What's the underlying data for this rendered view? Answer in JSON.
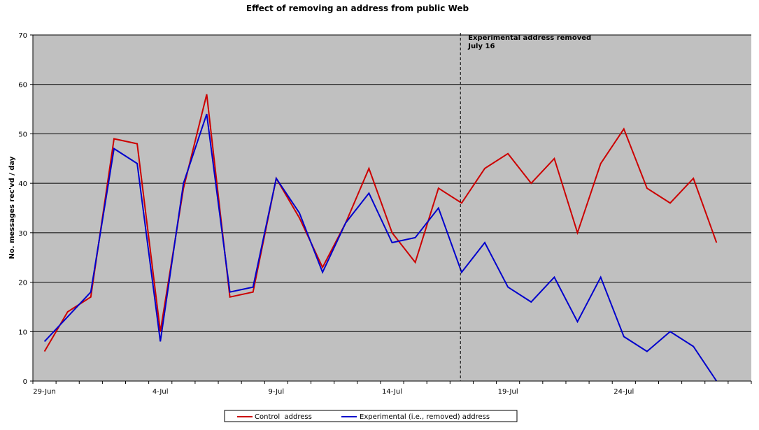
{
  "chart_data": {
    "type": "line",
    "title": "Effect of removing an address from public Web",
    "xlabel": "",
    "ylabel": "No. messages rec'vd / day",
    "ylim": [
      0,
      70
    ],
    "yticks": [
      0,
      10,
      20,
      30,
      40,
      50,
      60,
      70
    ],
    "x": [
      "29-Jun",
      "30-Jun",
      "1-Jul",
      "2-Jul",
      "3-Jul",
      "4-Jul",
      "5-Jul",
      "6-Jul",
      "7-Jul",
      "8-Jul",
      "9-Jul",
      "10-Jul",
      "11-Jul",
      "12-Jul",
      "13-Jul",
      "14-Jul",
      "15-Jul",
      "16-Jul",
      "17-Jul",
      "18-Jul",
      "19-Jul",
      "20-Jul",
      "21-Jul",
      "22-Jul",
      "23-Jul",
      "24-Jul",
      "25-Jul",
      "26-Jul",
      "27-Jul",
      "28-Jul",
      "29-Jul"
    ],
    "xtick_labels": [
      "29-Jun",
      "4-Jul",
      "9-Jul",
      "14-Jul",
      "19-Jul",
      "24-Jul"
    ],
    "grid": "horizontal",
    "background": "#c0c0c0",
    "legend_position": "bottom",
    "series": [
      {
        "name": "Control  address",
        "color": "#cc0000",
        "values": [
          6,
          14,
          17,
          49,
          48,
          10,
          39,
          58,
          17,
          18,
          41,
          33,
          23,
          32,
          43,
          30,
          24,
          39,
          36,
          43,
          46,
          40,
          45,
          30,
          44,
          51,
          39,
          36,
          41,
          28,
          null
        ]
      },
      {
        "name": "Experimental (i.e., removed) address",
        "color": "#0000cc",
        "values": [
          8,
          13,
          18,
          47,
          44,
          8,
          40,
          54,
          18,
          19,
          41,
          34,
          22,
          32,
          38,
          28,
          29,
          35,
          22,
          28,
          19,
          16,
          21,
          12,
          21,
          9,
          6,
          10,
          7,
          0,
          null
        ]
      }
    ],
    "annotation": {
      "line1": "Experimental address removed",
      "line2": "July 16",
      "x_index": 17.95
    }
  }
}
